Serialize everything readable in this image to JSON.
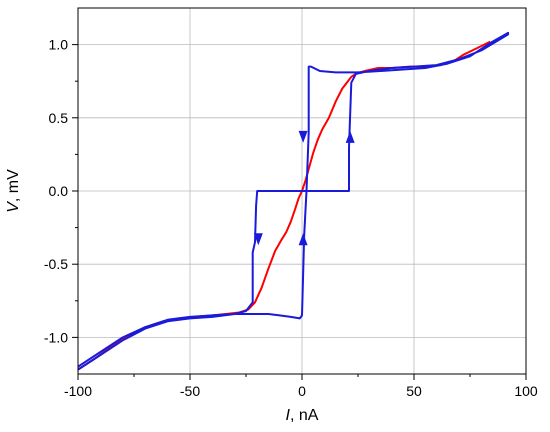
{
  "chart_data": {
    "type": "line",
    "xlabel_var": "I",
    "xlabel_unit": ", nA",
    "ylabel_var": "V",
    "ylabel_unit": ", mV",
    "xlim": [
      -100,
      100
    ],
    "ylim": [
      -1.25,
      1.25
    ],
    "xticks": [
      -100,
      -50,
      0,
      50,
      100
    ],
    "yticks": [
      -1.0,
      -0.5,
      0.0,
      0.5,
      1.0
    ],
    "xtick_labels": [
      "-100",
      "-50",
      "0",
      "50",
      "100"
    ],
    "ytick_labels": [
      "-1.0",
      "-0.5",
      "0.0",
      "0.5",
      "1.0"
    ],
    "grid": true,
    "legend": "none",
    "series": [
      {
        "color": "#ff0000",
        "x": [
          -100,
          -92,
          -85,
          -78,
          -70,
          -62,
          -55,
          -48,
          -40,
          -34,
          -28,
          -24,
          -21,
          -18,
          -15,
          -12,
          -9,
          -7,
          -5,
          -3,
          -1.5,
          0,
          1.5,
          3,
          5,
          7,
          9,
          12,
          15,
          18,
          20,
          22,
          24,
          28,
          34,
          40,
          48,
          55,
          62,
          68,
          72,
          76,
          80,
          84
        ],
        "y": [
          -1.22,
          -1.14,
          -1.06,
          -0.99,
          -0.93,
          -0.89,
          -0.87,
          -0.86,
          -0.85,
          -0.84,
          -0.83,
          -0.81,
          -0.76,
          -0.66,
          -0.53,
          -0.41,
          -0.33,
          -0.28,
          -0.21,
          -0.12,
          -0.05,
          0.0,
          0.07,
          0.15,
          0.26,
          0.35,
          0.42,
          0.5,
          0.61,
          0.7,
          0.74,
          0.78,
          0.8,
          0.82,
          0.84,
          0.84,
          0.85,
          0.85,
          0.86,
          0.89,
          0.93,
          0.96,
          0.99,
          1.02
        ]
      },
      {
        "color": "#1a1adb",
        "x": [
          -100,
          -90,
          -80,
          -70,
          -60,
          -50,
          -40,
          -30,
          -25,
          -22,
          -20,
          -15,
          -10,
          -5,
          -1,
          0,
          1,
          2,
          8,
          15,
          20,
          21,
          21,
          22,
          24,
          30,
          40,
          50,
          60,
          70,
          80,
          92,
          92,
          85,
          75,
          65,
          55,
          45,
          35,
          25,
          15,
          8,
          4,
          3,
          3,
          2,
          1,
          0,
          -1,
          -5,
          -10,
          -15,
          -17,
          -18,
          -19,
          -20,
          -20.5,
          -21,
          -22,
          -22,
          -25,
          -30,
          -40,
          -50,
          -60,
          -70,
          -80,
          -90,
          -100
        ],
        "y": [
          -1.2,
          -1.1,
          -1.0,
          -0.93,
          -0.88,
          -0.86,
          -0.85,
          -0.84,
          -0.84,
          -0.84,
          -0.84,
          -0.84,
          -0.85,
          -0.86,
          -0.87,
          -0.85,
          -0.3,
          0.0,
          0.0,
          0.0,
          0.0,
          0.0,
          0.3,
          0.74,
          0.8,
          0.82,
          0.84,
          0.85,
          0.86,
          0.9,
          0.96,
          1.07,
          1.08,
          1.02,
          0.92,
          0.87,
          0.84,
          0.83,
          0.82,
          0.81,
          0.81,
          0.82,
          0.85,
          0.85,
          0.4,
          0.0,
          0.0,
          0.0,
          0.0,
          0.0,
          0.0,
          0.0,
          0.0,
          0.0,
          0.0,
          0.0,
          -0.1,
          -0.35,
          -0.42,
          -0.76,
          -0.82,
          -0.84,
          -0.86,
          -0.87,
          -0.89,
          -0.94,
          -1.02,
          -1.12,
          -1.22
        ]
      }
    ],
    "annotations": [
      {
        "type": "arrow",
        "direction": "down",
        "x": 0.5,
        "y": 0.37,
        "color": "#1a1adb"
      },
      {
        "type": "arrow",
        "direction": "up",
        "x": 21.5,
        "y": 0.37,
        "color": "#1a1adb"
      },
      {
        "type": "arrow",
        "direction": "down",
        "x": -19.5,
        "y": -0.33,
        "color": "#1a1adb"
      },
      {
        "type": "arrow",
        "direction": "up",
        "x": 0.5,
        "y": -0.33,
        "color": "#1a1adb"
      }
    ]
  }
}
